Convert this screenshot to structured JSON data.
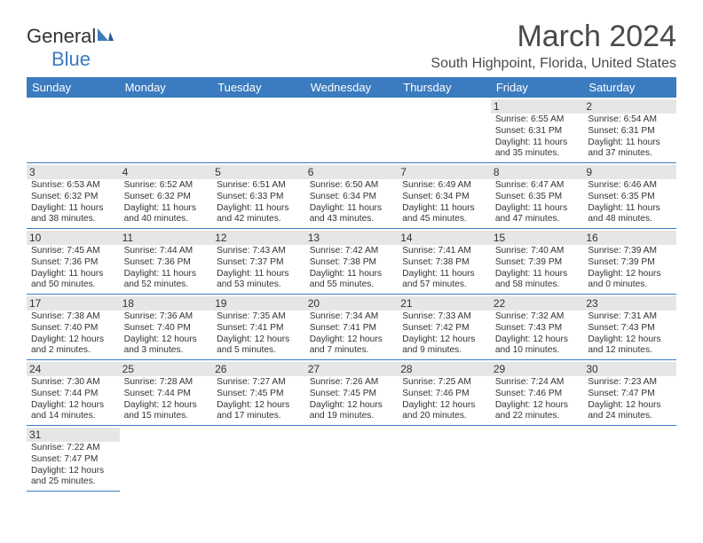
{
  "logo": {
    "text1": "General",
    "text2": "Blue"
  },
  "title": "March 2024",
  "location": "South Highpoint, Florida, United States",
  "days": [
    "Sunday",
    "Monday",
    "Tuesday",
    "Wednesday",
    "Thursday",
    "Friday",
    "Saturday"
  ],
  "colors": {
    "header_bg": "#3b7bbf",
    "daynum_bg": "#e6e6e6",
    "border": "#3b7bbf"
  },
  "weeks": [
    [
      null,
      null,
      null,
      null,
      null,
      {
        "n": "1",
        "sr": "Sunrise: 6:55 AM",
        "ss": "Sunset: 6:31 PM",
        "dl": "Daylight: 11 hours and 35 minutes."
      },
      {
        "n": "2",
        "sr": "Sunrise: 6:54 AM",
        "ss": "Sunset: 6:31 PM",
        "dl": "Daylight: 11 hours and 37 minutes."
      }
    ],
    [
      {
        "n": "3",
        "sr": "Sunrise: 6:53 AM",
        "ss": "Sunset: 6:32 PM",
        "dl": "Daylight: 11 hours and 38 minutes."
      },
      {
        "n": "4",
        "sr": "Sunrise: 6:52 AM",
        "ss": "Sunset: 6:32 PM",
        "dl": "Daylight: 11 hours and 40 minutes."
      },
      {
        "n": "5",
        "sr": "Sunrise: 6:51 AM",
        "ss": "Sunset: 6:33 PM",
        "dl": "Daylight: 11 hours and 42 minutes."
      },
      {
        "n": "6",
        "sr": "Sunrise: 6:50 AM",
        "ss": "Sunset: 6:34 PM",
        "dl": "Daylight: 11 hours and 43 minutes."
      },
      {
        "n": "7",
        "sr": "Sunrise: 6:49 AM",
        "ss": "Sunset: 6:34 PM",
        "dl": "Daylight: 11 hours and 45 minutes."
      },
      {
        "n": "8",
        "sr": "Sunrise: 6:47 AM",
        "ss": "Sunset: 6:35 PM",
        "dl": "Daylight: 11 hours and 47 minutes."
      },
      {
        "n": "9",
        "sr": "Sunrise: 6:46 AM",
        "ss": "Sunset: 6:35 PM",
        "dl": "Daylight: 11 hours and 48 minutes."
      }
    ],
    [
      {
        "n": "10",
        "sr": "Sunrise: 7:45 AM",
        "ss": "Sunset: 7:36 PM",
        "dl": "Daylight: 11 hours and 50 minutes."
      },
      {
        "n": "11",
        "sr": "Sunrise: 7:44 AM",
        "ss": "Sunset: 7:36 PM",
        "dl": "Daylight: 11 hours and 52 minutes."
      },
      {
        "n": "12",
        "sr": "Sunrise: 7:43 AM",
        "ss": "Sunset: 7:37 PM",
        "dl": "Daylight: 11 hours and 53 minutes."
      },
      {
        "n": "13",
        "sr": "Sunrise: 7:42 AM",
        "ss": "Sunset: 7:38 PM",
        "dl": "Daylight: 11 hours and 55 minutes."
      },
      {
        "n": "14",
        "sr": "Sunrise: 7:41 AM",
        "ss": "Sunset: 7:38 PM",
        "dl": "Daylight: 11 hours and 57 minutes."
      },
      {
        "n": "15",
        "sr": "Sunrise: 7:40 AM",
        "ss": "Sunset: 7:39 PM",
        "dl": "Daylight: 11 hours and 58 minutes."
      },
      {
        "n": "16",
        "sr": "Sunrise: 7:39 AM",
        "ss": "Sunset: 7:39 PM",
        "dl": "Daylight: 12 hours and 0 minutes."
      }
    ],
    [
      {
        "n": "17",
        "sr": "Sunrise: 7:38 AM",
        "ss": "Sunset: 7:40 PM",
        "dl": "Daylight: 12 hours and 2 minutes."
      },
      {
        "n": "18",
        "sr": "Sunrise: 7:36 AM",
        "ss": "Sunset: 7:40 PM",
        "dl": "Daylight: 12 hours and 3 minutes."
      },
      {
        "n": "19",
        "sr": "Sunrise: 7:35 AM",
        "ss": "Sunset: 7:41 PM",
        "dl": "Daylight: 12 hours and 5 minutes."
      },
      {
        "n": "20",
        "sr": "Sunrise: 7:34 AM",
        "ss": "Sunset: 7:41 PM",
        "dl": "Daylight: 12 hours and 7 minutes."
      },
      {
        "n": "21",
        "sr": "Sunrise: 7:33 AM",
        "ss": "Sunset: 7:42 PM",
        "dl": "Daylight: 12 hours and 9 minutes."
      },
      {
        "n": "22",
        "sr": "Sunrise: 7:32 AM",
        "ss": "Sunset: 7:43 PM",
        "dl": "Daylight: 12 hours and 10 minutes."
      },
      {
        "n": "23",
        "sr": "Sunrise: 7:31 AM",
        "ss": "Sunset: 7:43 PM",
        "dl": "Daylight: 12 hours and 12 minutes."
      }
    ],
    [
      {
        "n": "24",
        "sr": "Sunrise: 7:30 AM",
        "ss": "Sunset: 7:44 PM",
        "dl": "Daylight: 12 hours and 14 minutes."
      },
      {
        "n": "25",
        "sr": "Sunrise: 7:28 AM",
        "ss": "Sunset: 7:44 PM",
        "dl": "Daylight: 12 hours and 15 minutes."
      },
      {
        "n": "26",
        "sr": "Sunrise: 7:27 AM",
        "ss": "Sunset: 7:45 PM",
        "dl": "Daylight: 12 hours and 17 minutes."
      },
      {
        "n": "27",
        "sr": "Sunrise: 7:26 AM",
        "ss": "Sunset: 7:45 PM",
        "dl": "Daylight: 12 hours and 19 minutes."
      },
      {
        "n": "28",
        "sr": "Sunrise: 7:25 AM",
        "ss": "Sunset: 7:46 PM",
        "dl": "Daylight: 12 hours and 20 minutes."
      },
      {
        "n": "29",
        "sr": "Sunrise: 7:24 AM",
        "ss": "Sunset: 7:46 PM",
        "dl": "Daylight: 12 hours and 22 minutes."
      },
      {
        "n": "30",
        "sr": "Sunrise: 7:23 AM",
        "ss": "Sunset: 7:47 PM",
        "dl": "Daylight: 12 hours and 24 minutes."
      }
    ],
    [
      {
        "n": "31",
        "sr": "Sunrise: 7:22 AM",
        "ss": "Sunset: 7:47 PM",
        "dl": "Daylight: 12 hours and 25 minutes."
      },
      null,
      null,
      null,
      null,
      null,
      null
    ]
  ]
}
